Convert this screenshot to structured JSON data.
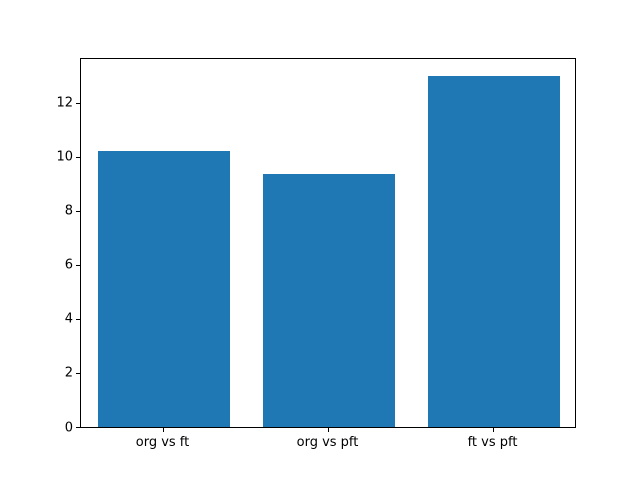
{
  "chart_data": {
    "type": "bar",
    "title": "",
    "xlabel": "",
    "ylabel": "",
    "categories": [
      "org vs ft",
      "org vs pft",
      "ft vs pft"
    ],
    "values": [
      10.2,
      9.35,
      13.0
    ],
    "yticks": [
      0,
      2,
      4,
      6,
      8,
      10,
      12
    ],
    "ylim": [
      0,
      13.65
    ],
    "bar_width_fraction": 0.8,
    "grid": false,
    "legend": null,
    "bar_color": "#1f77b4"
  },
  "colors": {
    "background": "#ffffff",
    "spine": "#000000",
    "tick_text": "#000000"
  }
}
